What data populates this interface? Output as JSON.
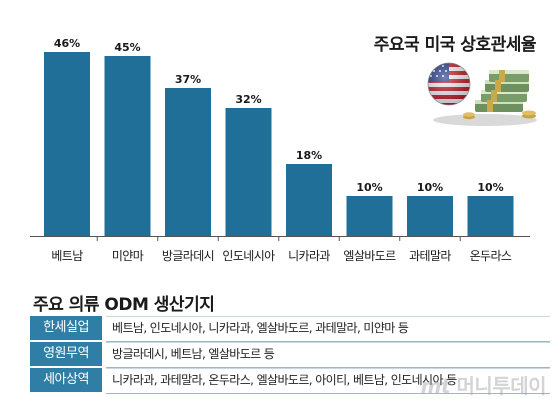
{
  "chart_data": {
    "type": "bar",
    "title": "주요국 미국 상호관세율",
    "categories": [
      "베트남",
      "미얀마",
      "방글라데시",
      "인도네시아",
      "니카라과",
      "엘살바도르",
      "과테말라",
      "온두라스"
    ],
    "values": [
      46,
      45,
      37,
      32,
      18,
      10,
      10,
      10
    ],
    "value_labels": [
      "46%",
      "45%",
      "37%",
      "32%",
      "18%",
      "10%",
      "10%",
      "10%"
    ],
    "bar_color": "#1f6f98",
    "ylim": [
      0,
      50
    ],
    "grid": false
  },
  "odm": {
    "title": "주요 의류 ODM 생산기지",
    "header_color": "#2e7ea6",
    "rows": [
      {
        "company": "한세실업",
        "countries": "베트남, 인도네시아, 니카라과, 엘살바도르, 과테말라, 미얀마 등"
      },
      {
        "company": "영원무역",
        "countries": "방글라데시, 베트남, 엘살바도르 등"
      },
      {
        "company": "세아상역",
        "countries": "니카라과, 과테말라, 온두라스, 엘살바도르, 아이티, 베트남, 인도네시아 등"
      }
    ]
  },
  "watermark": {
    "prefix": "mt",
    "text": "머니투데이"
  },
  "illustration": {
    "icon": "us-flag-globe-with-money-icon"
  }
}
